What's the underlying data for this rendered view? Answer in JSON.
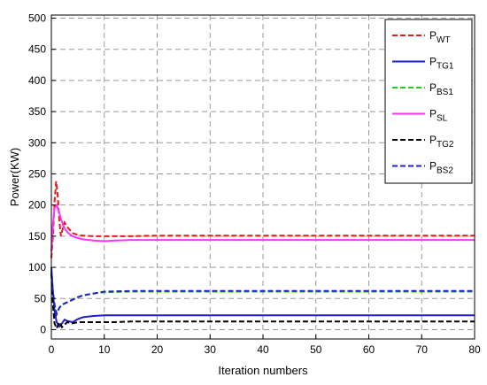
{
  "chart_data": {
    "type": "line",
    "title": "",
    "xlabel": "Iteration numbers",
    "ylabel": "Power(KW)",
    "xlim": [
      0,
      80
    ],
    "ylim": [
      -15,
      505
    ],
    "xticks": [
      0,
      10,
      20,
      30,
      40,
      50,
      60,
      70,
      80
    ],
    "yticks": [
      0,
      50,
      100,
      150,
      200,
      250,
      300,
      350,
      400,
      450,
      500
    ],
    "grid": true,
    "legend_position": "top-right",
    "series": [
      {
        "name": "P",
        "sub": "WT",
        "color": "#e41a1c",
        "dash": "dashed",
        "x": [
          0,
          0.3,
          0.6,
          0.9,
          1.2,
          1.5,
          1.8,
          2.1,
          2.5,
          3,
          4,
          5,
          6,
          8,
          10,
          15,
          20,
          30,
          40,
          50,
          60,
          70,
          80
        ],
        "y": [
          115,
          150,
          205,
          238,
          215,
          175,
          150,
          160,
          172,
          165,
          155,
          152,
          151,
          150,
          150,
          150,
          151,
          151,
          151,
          151,
          151,
          151,
          151
        ]
      },
      {
        "name": "P",
        "sub": "TG1",
        "color": "#1f1fcf",
        "dash": "solid",
        "x": [
          0,
          0.3,
          0.6,
          1,
          1.5,
          2,
          2.5,
          3,
          4,
          5,
          6,
          8,
          10,
          15,
          20,
          30,
          40,
          50,
          60,
          70,
          80
        ],
        "y": [
          100,
          60,
          30,
          12,
          5,
          10,
          16,
          14,
          12,
          17,
          20,
          22,
          23,
          23,
          23,
          23,
          23,
          23,
          23,
          23,
          23
        ]
      },
      {
        "name": "P",
        "sub": "BS1",
        "color": "#22cc22",
        "dash": "dashed",
        "x": [
          0,
          0.3,
          0.6,
          1,
          1.5,
          2,
          3,
          4,
          5,
          6,
          8,
          10,
          15,
          20,
          30,
          40,
          50,
          60,
          70,
          80
        ],
        "y": [
          95,
          60,
          40,
          25,
          35,
          40,
          44,
          48,
          52,
          55,
          58,
          60,
          61,
          61,
          61,
          61,
          61,
          61,
          61,
          61
        ]
      },
      {
        "name": "P",
        "sub": "SL",
        "color": "#ff33ff",
        "dash": "solid",
        "x": [
          0,
          0.3,
          0.6,
          1,
          1.4,
          1.8,
          2.2,
          2.7,
          3.2,
          4,
          5,
          6,
          8,
          10,
          12,
          15,
          20,
          30,
          40,
          50,
          60,
          70,
          80
        ],
        "y": [
          125,
          170,
          195,
          200,
          190,
          178,
          168,
          160,
          155,
          150,
          147,
          145,
          143,
          142,
          143,
          144,
          144,
          144,
          144,
          144,
          144,
          144,
          144
        ]
      },
      {
        "name": "P",
        "sub": "TG2",
        "color": "#000000",
        "dash": "dashed",
        "x": [
          0,
          0.3,
          0.6,
          1,
          1.5,
          2,
          2.5,
          3,
          4,
          5,
          6,
          8,
          10,
          12,
          15,
          20,
          30,
          40,
          50,
          60,
          70,
          80
        ],
        "y": [
          90,
          40,
          10,
          2,
          12,
          4,
          8,
          12,
          10,
          12,
          12,
          12,
          12,
          12,
          13,
          13,
          13,
          13,
          13,
          13,
          13,
          13
        ]
      },
      {
        "name": "P",
        "sub": "BS2",
        "color": "#1f1fcf",
        "dash": "dashed",
        "x": [
          0,
          0.3,
          0.6,
          1,
          1.5,
          2,
          3,
          4,
          5,
          6,
          8,
          10,
          15,
          20,
          30,
          40,
          50,
          60,
          70,
          80
        ],
        "y": [
          95,
          60,
          40,
          25,
          35,
          40,
          44,
          48,
          52,
          55,
          58,
          61,
          62,
          62,
          62,
          62,
          62,
          62,
          62,
          62
        ]
      }
    ]
  }
}
